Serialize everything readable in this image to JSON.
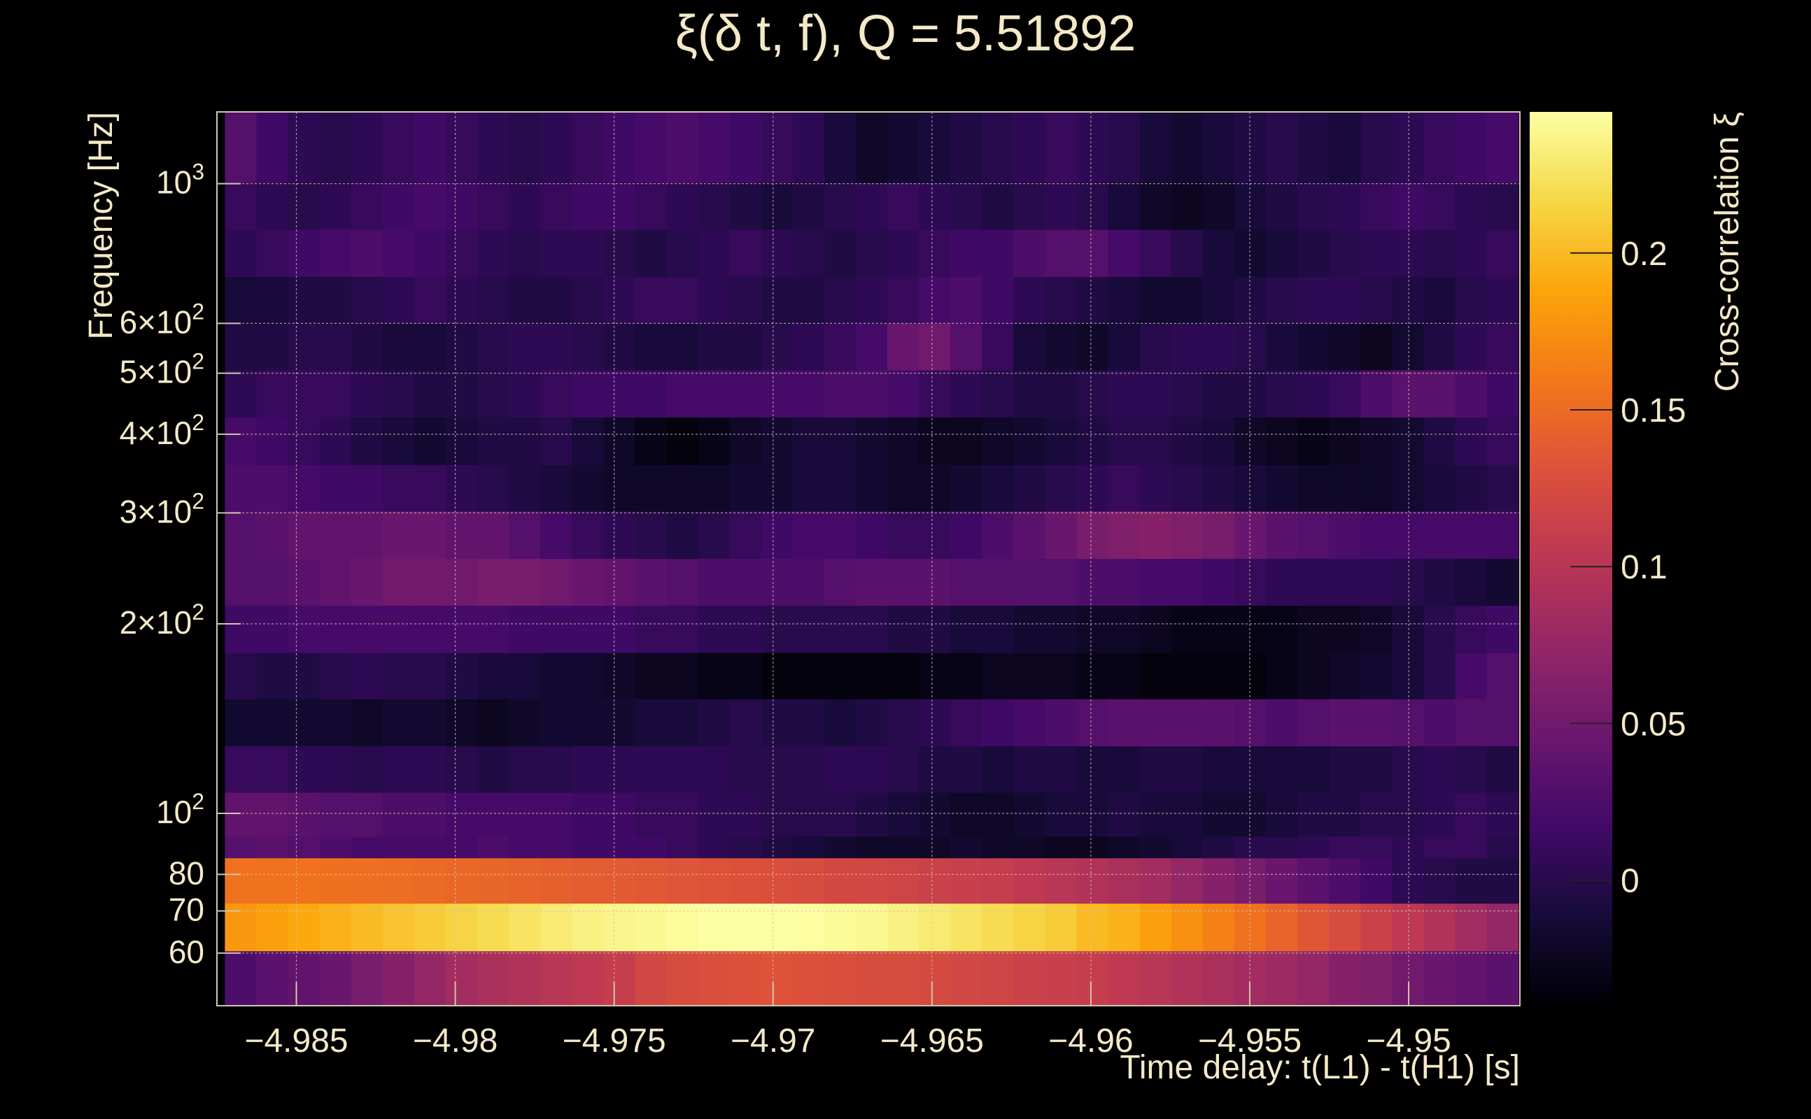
{
  "chart_data": {
    "type": "heatmap",
    "title": "ξ(δ t, f), Q = 5.51892",
    "xlabel": "Time delay: t(L1) - t(H1) [s]",
    "ylabel": "Frequency [Hz]",
    "zlabel": "Cross-correlation ξ",
    "x_scale": "linear",
    "y_scale": "log",
    "xlim": [
      -4.9875,
      -4.9465
    ],
    "ylim": [
      49.5,
      1300
    ],
    "zlim": [
      -0.04,
      0.245
    ],
    "grid": true,
    "colormap": "inferno",
    "x_ticks": [
      {
        "value": -4.985,
        "label": "−4.985"
      },
      {
        "value": -4.98,
        "label": "−4.98"
      },
      {
        "value": -4.975,
        "label": "−4.975"
      },
      {
        "value": -4.97,
        "label": "−4.97"
      },
      {
        "value": -4.965,
        "label": "−4.965"
      },
      {
        "value": -4.96,
        "label": "−4.96"
      },
      {
        "value": -4.955,
        "label": "−4.955"
      },
      {
        "value": -4.95,
        "label": "−4.95"
      }
    ],
    "y_ticks": [
      {
        "value": 60,
        "mantissa": "60",
        "exponent": ""
      },
      {
        "value": 70,
        "mantissa": "70",
        "exponent": ""
      },
      {
        "value": 80,
        "mantissa": "80",
        "exponent": ""
      },
      {
        "value": 100,
        "mantissa": "10",
        "exponent": "2"
      },
      {
        "value": 200,
        "mantissa": "2×10",
        "exponent": "2"
      },
      {
        "value": 300,
        "mantissa": "3×10",
        "exponent": "2"
      },
      {
        "value": 400,
        "mantissa": "4×10",
        "exponent": "2"
      },
      {
        "value": 500,
        "mantissa": "5×10",
        "exponent": "2"
      },
      {
        "value": 600,
        "mantissa": "6×10",
        "exponent": "2"
      },
      {
        "value": 1000,
        "mantissa": "10",
        "exponent": "3"
      }
    ],
    "z_ticks": [
      {
        "value": 0,
        "label": "0"
      },
      {
        "value": 0.05,
        "label": "0.05"
      },
      {
        "value": 0.1,
        "label": "0.1"
      },
      {
        "value": 0.15,
        "label": "0.15"
      },
      {
        "value": 0.2,
        "label": "0.2"
      }
    ],
    "bands_hz": [
      [
        49.5,
        60.5
      ],
      [
        60.5,
        72
      ],
      [
        72,
        85
      ],
      [
        85,
        92
      ],
      [
        92,
        108
      ],
      [
        108,
        128
      ],
      [
        128,
        152
      ],
      [
        152,
        180
      ],
      [
        180,
        214
      ],
      [
        214,
        254
      ],
      [
        254,
        302
      ],
      [
        302,
        358
      ],
      [
        358,
        426
      ],
      [
        426,
        506
      ],
      [
        506,
        600
      ],
      [
        600,
        712
      ],
      [
        712,
        846
      ],
      [
        846,
        1004
      ],
      [
        1004,
        1300
      ]
    ],
    "rows": [
      {
        "x0": -4.98725,
        "x1": -4.94655,
        "v": [
          0.025,
          0.035,
          0.04,
          0.045,
          0.055,
          0.065,
          0.075,
          0.085,
          0.09,
          0.095,
          0.1,
          0.105,
          0.11,
          0.12,
          0.125,
          0.128,
          0.13,
          0.132,
          0.13,
          0.128,
          0.125,
          0.125,
          0.123,
          0.12,
          0.118,
          0.115,
          0.112,
          0.11,
          0.105,
          0.1,
          0.095,
          0.09,
          0.085,
          0.08,
          0.075,
          0.065,
          0.06,
          0.05,
          0.045,
          0.04,
          0.035
        ]
      },
      {
        "x0": -4.98725,
        "x1": -4.94655,
        "v": [
          0.18,
          0.185,
          0.19,
          0.195,
          0.2,
          0.205,
          0.21,
          0.215,
          0.22,
          0.225,
          0.23,
          0.235,
          0.238,
          0.24,
          0.243,
          0.245,
          0.245,
          0.245,
          0.244,
          0.242,
          0.24,
          0.235,
          0.23,
          0.225,
          0.22,
          0.215,
          0.21,
          0.2,
          0.195,
          0.185,
          0.175,
          0.165,
          0.155,
          0.145,
          0.135,
          0.125,
          0.115,
          0.105,
          0.095,
          0.085,
          0.075
        ]
      },
      {
        "x0": -4.98725,
        "x1": -4.94655,
        "v": [
          0.155,
          0.155,
          0.155,
          0.154,
          0.153,
          0.152,
          0.15,
          0.148,
          0.146,
          0.144,
          0.142,
          0.14,
          0.138,
          0.136,
          0.134,
          0.132,
          0.13,
          0.128,
          0.125,
          0.122,
          0.12,
          0.118,
          0.115,
          0.112,
          0.11,
          0.105,
          0.1,
          0.095,
          0.09,
          0.085,
          0.075,
          0.065,
          0.055,
          0.045,
          0.035,
          0.025,
          0.015,
          0.005,
          0.0,
          -0.005,
          -0.005
        ]
      },
      {
        "x0": -4.98725,
        "x1": -4.94655,
        "v": [
          0.03,
          0.035,
          0.03,
          0.025,
          0.02,
          0.02,
          0.02,
          0.02,
          0.025,
          0.02,
          0.02,
          0.015,
          0.015,
          0.015,
          0.01,
          0.005,
          0.0,
          -0.005,
          -0.01,
          -0.015,
          -0.02,
          -0.02,
          -0.02,
          -0.015,
          -0.02,
          -0.02,
          -0.025,
          -0.025,
          -0.02,
          -0.015,
          -0.01,
          -0.005,
          0.0,
          0.0,
          0.005,
          0.01,
          0.01,
          0.005,
          0.01,
          0.01,
          0.0
        ]
      },
      {
        "x0": -4.98725,
        "x1": -4.94655,
        "v": [
          0.04,
          0.04,
          0.035,
          0.03,
          0.03,
          0.025,
          0.025,
          0.02,
          0.02,
          0.02,
          0.02,
          0.015,
          0.015,
          0.01,
          0.01,
          0.005,
          0.005,
          0.0,
          0.0,
          0.0,
          -0.005,
          -0.01,
          -0.015,
          -0.02,
          -0.02,
          -0.015,
          -0.01,
          -0.01,
          -0.005,
          -0.01,
          -0.01,
          -0.015,
          -0.015,
          -0.01,
          -0.005,
          -0.005,
          0.0,
          0.0,
          0.005,
          0.01,
          0.005
        ]
      },
      {
        "x0": -4.98725,
        "x1": -4.94655,
        "v": [
          0.01,
          0.01,
          0.005,
          0.005,
          0.0,
          0.005,
          0.005,
          0.0,
          -0.005,
          0.0,
          0.0,
          0.005,
          0.005,
          0.005,
          0.005,
          0.005,
          0.0,
          0.0,
          0.0,
          0.005,
          0.005,
          0.0,
          -0.005,
          -0.005,
          -0.01,
          -0.005,
          -0.005,
          -0.01,
          -0.01,
          -0.005,
          -0.005,
          -0.01,
          -0.01,
          -0.01,
          -0.01,
          -0.005,
          -0.005,
          0.0,
          0.005,
          0.0,
          -0.005
        ]
      },
      {
        "x0": -4.98725,
        "x1": -4.94655,
        "v": [
          -0.015,
          -0.015,
          -0.015,
          -0.015,
          -0.02,
          -0.015,
          -0.015,
          -0.02,
          -0.025,
          -0.02,
          -0.015,
          -0.015,
          -0.015,
          -0.01,
          -0.01,
          -0.005,
          0.0,
          -0.005,
          -0.005,
          -0.01,
          -0.005,
          0.0,
          0.005,
          0.01,
          0.015,
          0.02,
          0.025,
          0.03,
          0.035,
          0.035,
          0.035,
          0.035,
          0.03,
          0.025,
          0.03,
          0.035,
          0.035,
          0.03,
          0.025,
          0.03,
          0.03
        ]
      },
      {
        "x0": -4.98725,
        "x1": -4.94655,
        "v": [
          0.0,
          -0.005,
          -0.005,
          0.0,
          0.005,
          0.0,
          0.0,
          -0.005,
          -0.01,
          -0.01,
          -0.015,
          -0.015,
          -0.02,
          -0.025,
          -0.025,
          -0.03,
          -0.03,
          -0.035,
          -0.035,
          -0.035,
          -0.035,
          -0.035,
          -0.03,
          -0.03,
          -0.025,
          -0.025,
          -0.025,
          -0.03,
          -0.03,
          -0.035,
          -0.035,
          -0.035,
          -0.035,
          -0.03,
          -0.025,
          -0.02,
          -0.015,
          -0.01,
          0.0,
          0.02,
          0.03
        ]
      },
      {
        "x0": -4.98725,
        "x1": -4.94655,
        "v": [
          0.015,
          0.015,
          0.02,
          0.02,
          0.02,
          0.02,
          0.02,
          0.02,
          0.02,
          0.015,
          0.015,
          0.015,
          0.015,
          0.01,
          0.01,
          0.005,
          0.005,
          0.0,
          0.0,
          0.0,
          0.0,
          -0.005,
          -0.005,
          -0.01,
          -0.01,
          -0.015,
          -0.015,
          -0.02,
          -0.02,
          -0.025,
          -0.03,
          -0.03,
          -0.03,
          -0.03,
          -0.025,
          -0.025,
          -0.02,
          -0.01,
          0.0,
          0.01,
          0.015
        ]
      },
      {
        "x0": -4.98725,
        "x1": -4.94655,
        "v": [
          0.03,
          0.03,
          0.035,
          0.04,
          0.045,
          0.05,
          0.05,
          0.05,
          0.055,
          0.055,
          0.05,
          0.045,
          0.04,
          0.035,
          0.03,
          0.025,
          0.025,
          0.025,
          0.025,
          0.03,
          0.035,
          0.035,
          0.035,
          0.03,
          0.03,
          0.03,
          0.03,
          0.025,
          0.025,
          0.02,
          0.02,
          0.015,
          0.01,
          0.005,
          0.005,
          0.005,
          0.005,
          0.0,
          -0.005,
          -0.01,
          -0.015
        ]
      },
      {
        "x0": -4.98725,
        "x1": -4.94655,
        "v": [
          0.03,
          0.035,
          0.04,
          0.04,
          0.04,
          0.045,
          0.045,
          0.04,
          0.04,
          0.03,
          0.02,
          0.01,
          0.005,
          0.0,
          -0.005,
          0.0,
          0.01,
          0.015,
          0.02,
          0.02,
          0.015,
          0.01,
          0.01,
          0.015,
          0.025,
          0.035,
          0.045,
          0.055,
          0.06,
          0.065,
          0.06,
          0.055,
          0.045,
          0.035,
          0.03,
          0.025,
          0.02,
          0.02,
          0.02,
          0.02,
          0.02
        ]
      },
      {
        "x0": -4.98725,
        "x1": -4.94655,
        "v": [
          0.025,
          0.025,
          0.02,
          0.015,
          0.015,
          0.01,
          0.01,
          0.005,
          0.0,
          -0.005,
          -0.01,
          -0.015,
          -0.02,
          -0.02,
          -0.02,
          -0.02,
          -0.015,
          -0.015,
          -0.01,
          -0.01,
          -0.015,
          -0.02,
          -0.02,
          -0.015,
          -0.01,
          -0.005,
          0.0,
          0.005,
          0.01,
          0.005,
          0.0,
          -0.005,
          -0.01,
          -0.015,
          -0.02,
          -0.02,
          -0.02,
          -0.015,
          -0.01,
          -0.005,
          0.0
        ]
      },
      {
        "x0": -4.98725,
        "x1": -4.94655,
        "v": [
          0.02,
          0.015,
          0.01,
          0.005,
          -0.005,
          -0.01,
          -0.015,
          -0.01,
          -0.005,
          -0.005,
          0.0,
          -0.01,
          -0.02,
          -0.03,
          -0.035,
          -0.03,
          -0.02,
          -0.015,
          -0.01,
          -0.01,
          -0.015,
          -0.02,
          -0.025,
          -0.025,
          -0.02,
          -0.015,
          -0.01,
          -0.005,
          0.0,
          0.0,
          -0.005,
          -0.01,
          -0.02,
          -0.025,
          -0.03,
          -0.025,
          -0.02,
          -0.015,
          -0.005,
          0.005,
          0.01
        ]
      },
      {
        "x0": -4.98725,
        "x1": -4.94655,
        "v": [
          0.005,
          0.01,
          0.01,
          0.01,
          0.005,
          0.0,
          -0.005,
          -0.005,
          0.0,
          0.005,
          0.01,
          0.015,
          0.015,
          0.015,
          0.02,
          0.02,
          0.02,
          0.02,
          0.02,
          0.025,
          0.025,
          0.02,
          0.01,
          0.005,
          0.0,
          -0.005,
          -0.005,
          0.0,
          0.005,
          0.005,
          0.0,
          -0.005,
          -0.005,
          0.0,
          0.005,
          0.01,
          0.025,
          0.035,
          0.035,
          0.025,
          0.015
        ]
      },
      {
        "x0": -4.98725,
        "x1": -4.94655,
        "v": [
          -0.005,
          -0.005,
          0.0,
          0.0,
          -0.005,
          -0.01,
          -0.01,
          -0.005,
          0.0,
          0.005,
          0.005,
          0.0,
          -0.005,
          -0.01,
          -0.01,
          -0.005,
          -0.005,
          0.0,
          0.005,
          0.01,
          0.02,
          0.045,
          0.05,
          0.03,
          0.01,
          -0.01,
          -0.015,
          -0.02,
          -0.01,
          0.0,
          0.005,
          0.005,
          0.0,
          -0.01,
          -0.015,
          -0.02,
          -0.025,
          -0.015,
          -0.005,
          0.005,
          0.01
        ]
      },
      {
        "x0": -4.98725,
        "x1": -4.94655,
        "v": [
          -0.01,
          -0.01,
          -0.005,
          -0.005,
          0.0,
          0.005,
          0.01,
          0.005,
          0.0,
          -0.005,
          -0.005,
          0.0,
          0.005,
          0.01,
          0.01,
          0.005,
          0.0,
          -0.005,
          -0.005,
          0.0,
          0.005,
          0.01,
          0.02,
          0.025,
          0.015,
          0.005,
          0.0,
          -0.005,
          -0.01,
          -0.015,
          -0.015,
          -0.01,
          -0.005,
          0.0,
          0.005,
          0.005,
          0.0,
          -0.005,
          -0.01,
          0.0,
          0.005
        ]
      },
      {
        "x0": -4.98725,
        "x1": -4.94655,
        "v": [
          0.005,
          0.01,
          0.015,
          0.02,
          0.025,
          0.02,
          0.015,
          0.01,
          0.005,
          0.0,
          0.005,
          0.005,
          0.0,
          -0.005,
          0.0,
          0.005,
          0.01,
          0.005,
          0.0,
          -0.005,
          0.0,
          0.005,
          0.01,
          0.015,
          0.015,
          0.025,
          0.03,
          0.03,
          0.02,
          0.01,
          0.0,
          -0.01,
          -0.015,
          -0.01,
          -0.005,
          0.0,
          0.005,
          0.005,
          0.0,
          0.005,
          0.01
        ]
      },
      {
        "x0": -4.98725,
        "x1": -4.94655,
        "v": [
          0.01,
          0.005,
          0.0,
          0.005,
          0.01,
          0.015,
          0.02,
          0.015,
          0.01,
          0.005,
          0.01,
          0.015,
          0.015,
          0.01,
          0.005,
          0.0,
          -0.005,
          -0.01,
          -0.005,
          0.0,
          0.005,
          0.01,
          0.005,
          0.0,
          -0.005,
          0.0,
          0.005,
          0.0,
          -0.01,
          -0.02,
          -0.025,
          -0.02,
          -0.01,
          -0.005,
          0.0,
          0.005,
          0.01,
          0.015,
          0.01,
          0.005,
          0.0
        ]
      },
      {
        "x0": -4.98725,
        "x1": -4.94655,
        "v": [
          0.03,
          0.015,
          0.005,
          0.0,
          0.005,
          0.01,
          0.015,
          0.01,
          0.005,
          0.0,
          0.005,
          0.01,
          0.015,
          0.02,
          0.025,
          0.02,
          0.015,
          0.01,
          0.005,
          -0.01,
          -0.02,
          -0.015,
          -0.01,
          -0.005,
          0.0,
          0.005,
          0.01,
          0.005,
          0.0,
          -0.01,
          -0.015,
          -0.01,
          -0.005,
          0.0,
          -0.005,
          -0.01,
          0.0,
          0.005,
          0.01,
          0.015,
          0.02
        ]
      }
    ]
  }
}
